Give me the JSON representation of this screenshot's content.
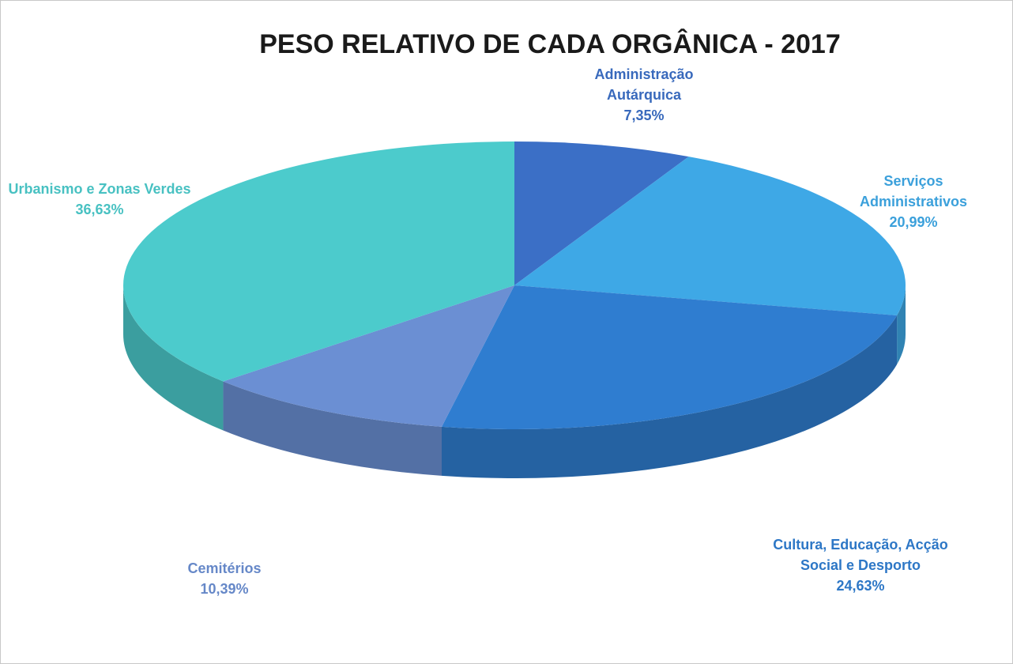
{
  "chart_data": {
    "type": "pie3d",
    "title": "PESO RELATIVO DE CADA ORGÂNICA - 2017",
    "categories": [
      "Administração Autárquica",
      "Serviços Administrativos",
      "Cultura, Educação, Acção Social e Desporto",
      "Cemitérios",
      "Urbanismo e Zonas Verdes"
    ],
    "values": [
      7.35,
      20.99,
      24.63,
      10.39,
      36.63
    ],
    "value_labels": [
      "7,35%",
      "20,99%",
      "24,63%",
      "10,39%",
      "36,63%"
    ],
    "colors": [
      "#3b6fc6",
      "#3ea8e6",
      "#2f7dd0",
      "#6b8fd3",
      "#4ccbcc"
    ]
  }
}
